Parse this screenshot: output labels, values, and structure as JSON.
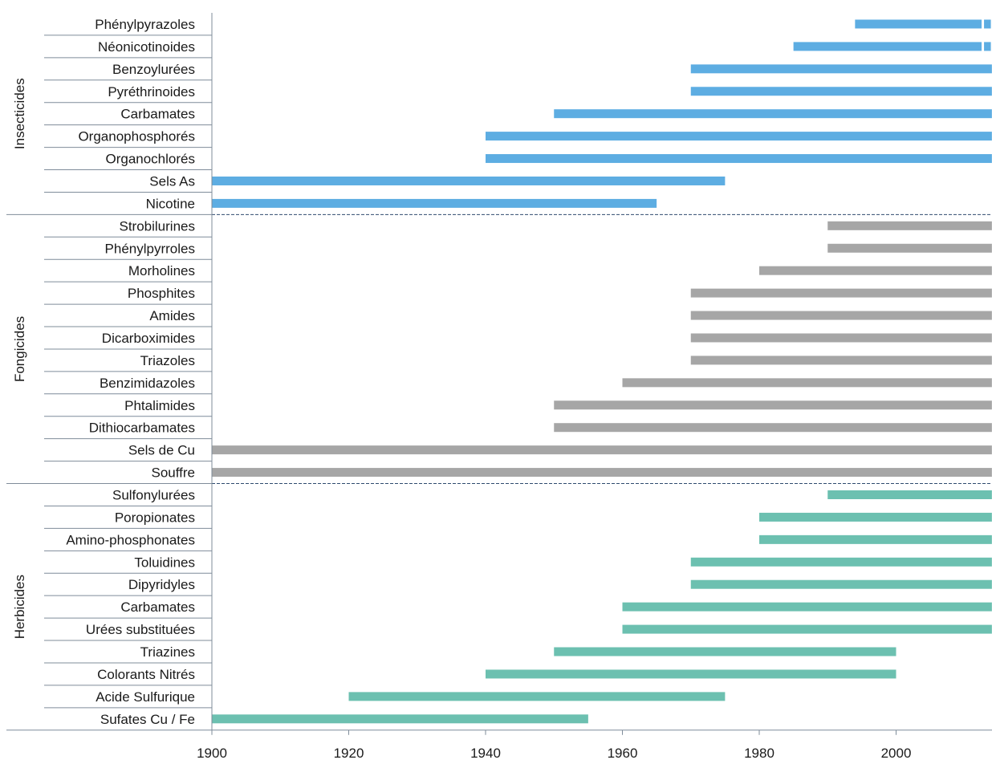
{
  "chart_data": {
    "type": "bar",
    "orientation": "horizontal-range",
    "x_axis": {
      "ticks": [
        1900,
        1920,
        1940,
        1960,
        1980,
        2000
      ],
      "range": [
        1900,
        2014
      ]
    },
    "colors": {
      "Insecticides": "#5dade2",
      "Fongicides": "#a6a6a6",
      "Herbicides": "#6cc0b0",
      "axis": "#7f8c9a",
      "separator": "#2e4a6e"
    },
    "groups": [
      {
        "name": "Insecticides",
        "items": [
          {
            "label": "Phénylpyrazoles",
            "start": 1994,
            "end": 2014
          },
          {
            "label": "Néonicotinoides",
            "start": 1985,
            "end": 2014
          },
          {
            "label": "Benzoylurées",
            "start": 1970,
            "end": 2014
          },
          {
            "label": "Pyréthrinoides",
            "start": 1970,
            "end": 2014
          },
          {
            "label": "Carbamates",
            "start": 1950,
            "end": 2014
          },
          {
            "label": "Organophosphorés",
            "start": 1940,
            "end": 2014
          },
          {
            "label": "Organochlorés",
            "start": 1940,
            "end": 2014
          },
          {
            "label": "Sels As",
            "start": 1900,
            "end": 1975
          },
          {
            "label": "Nicotine",
            "start": 1900,
            "end": 1965
          }
        ]
      },
      {
        "name": "Fongicides",
        "items": [
          {
            "label": "Strobilurines",
            "start": 1990,
            "end": 2014
          },
          {
            "label": "Phénylpyrroles",
            "start": 1990,
            "end": 2014
          },
          {
            "label": "Morholines",
            "start": 1980,
            "end": 2014
          },
          {
            "label": "Phosphites",
            "start": 1970,
            "end": 2014
          },
          {
            "label": "Amides",
            "start": 1970,
            "end": 2014
          },
          {
            "label": "Dicarboximides",
            "start": 1970,
            "end": 2014
          },
          {
            "label": "Triazoles",
            "start": 1970,
            "end": 2014
          },
          {
            "label": "Benzimidazoles",
            "start": 1960,
            "end": 2014
          },
          {
            "label": "Phtalimides",
            "start": 1950,
            "end": 2014
          },
          {
            "label": "Dithiocarbamates",
            "start": 1950,
            "end": 2014
          },
          {
            "label": "Sels de Cu",
            "start": 1900,
            "end": 2014
          },
          {
            "label": "Souffre",
            "start": 1900,
            "end": 2014
          }
        ]
      },
      {
        "name": "Herbicides",
        "items": [
          {
            "label": "Sulfonylurées",
            "start": 1990,
            "end": 2014
          },
          {
            "label": "Poropionates",
            "start": 1980,
            "end": 2014
          },
          {
            "label": "Amino-phosphonates",
            "start": 1980,
            "end": 2014
          },
          {
            "label": "Toluidines",
            "start": 1970,
            "end": 2014
          },
          {
            "label": "Dipyridyles",
            "start": 1970,
            "end": 2014
          },
          {
            "label": "Carbamates",
            "start": 1960,
            "end": 2014
          },
          {
            "label": "Urées substituées",
            "start": 1960,
            "end": 2014
          },
          {
            "label": "Triazines",
            "start": 1950,
            "end": 2000
          },
          {
            "label": "Colorants Nitrés",
            "start": 1940,
            "end": 2000
          },
          {
            "label": "Acide Sulfurique",
            "start": 1920,
            "end": 1975
          },
          {
            "label": "Sufates Cu / Fe",
            "start": 1900,
            "end": 1955
          }
        ]
      }
    ],
    "gap_markers": [
      {
        "group": "Insecticides",
        "label": "Phénylpyrazoles",
        "year": 2012.5
      },
      {
        "group": "Insecticides",
        "label": "Néonicotinoides",
        "year": 2012.5
      }
    ]
  }
}
